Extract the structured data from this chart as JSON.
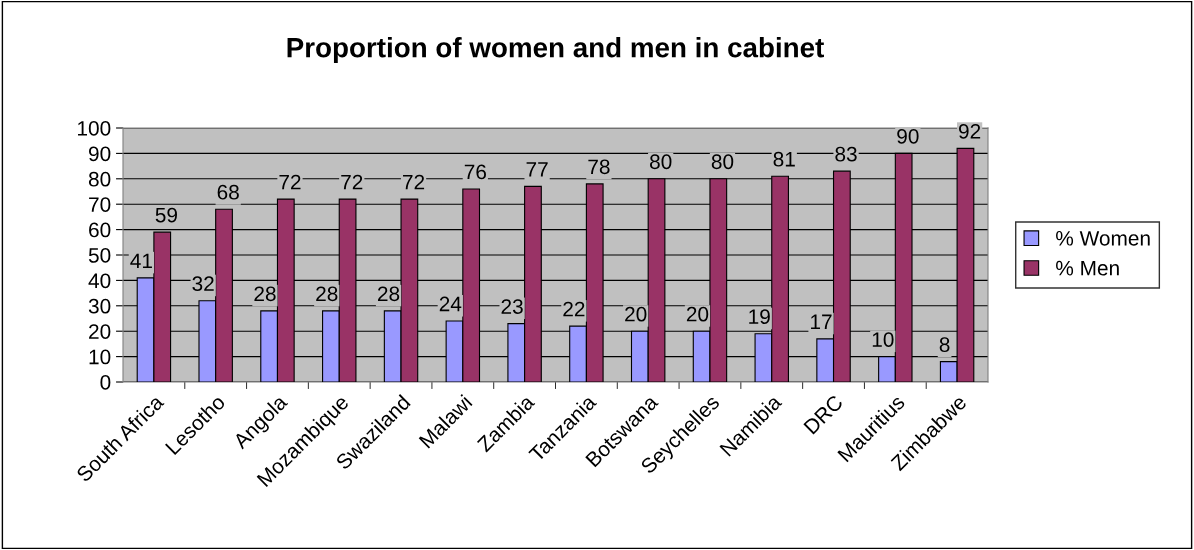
{
  "chart_data": {
    "type": "bar",
    "title": "Proportion of women and men in cabinet",
    "categories": [
      "South Africa",
      "Lesotho",
      "Angola",
      "Mozambique",
      "Swaziland",
      "Malawi",
      "Zambia",
      "Tanzania",
      "Botswana",
      "Seychelles",
      "Namibia",
      "DRC",
      "Mauritius",
      "Zimbabwe"
    ],
    "series": [
      {
        "name": "% Women",
        "color": "#9999ff",
        "values": [
          41,
          32,
          28,
          28,
          28,
          24,
          23,
          22,
          20,
          20,
          19,
          17,
          10,
          8
        ]
      },
      {
        "name": "% Men",
        "color": "#993366",
        "values": [
          59,
          68,
          72,
          72,
          72,
          76,
          77,
          78,
          80,
          80,
          81,
          83,
          90,
          92
        ]
      }
    ],
    "ylim": [
      0,
      100
    ],
    "yticks": [
      0,
      10,
      20,
      30,
      40,
      50,
      60,
      70,
      80,
      90,
      100
    ],
    "grid": "y",
    "legend": "right",
    "data_labels": true
  }
}
